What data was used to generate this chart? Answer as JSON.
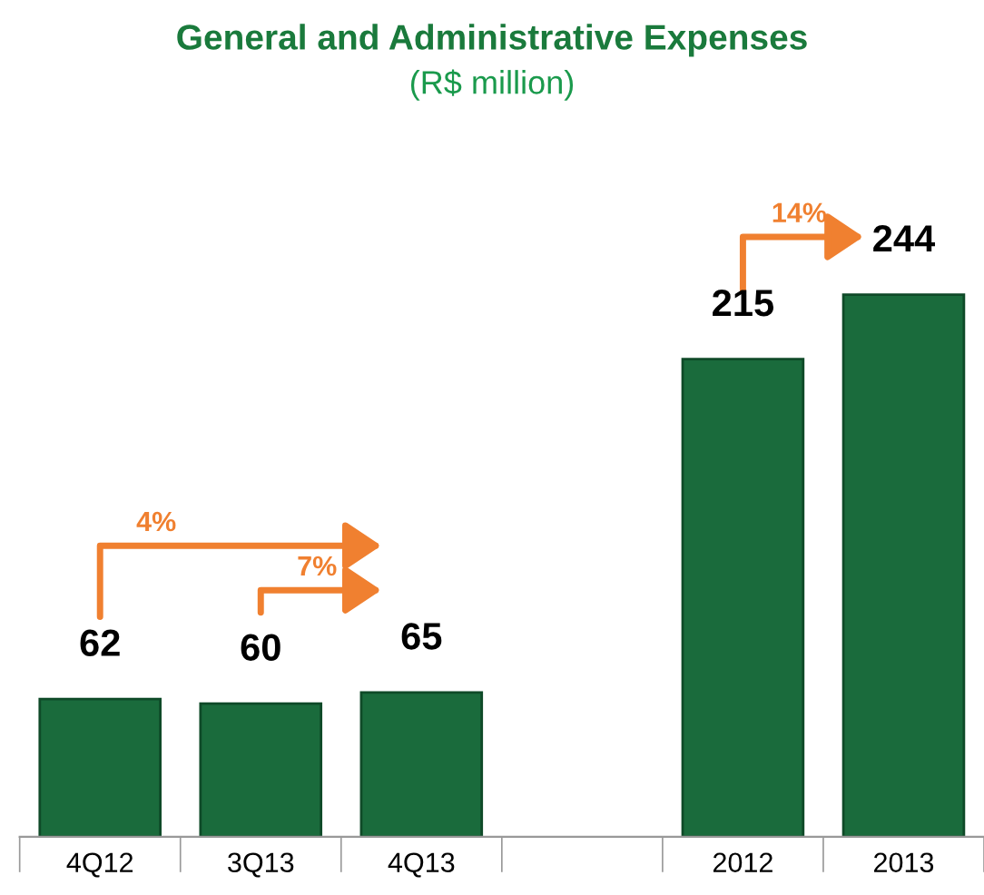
{
  "chart_data": {
    "type": "bar",
    "title": "General and Administrative Expenses",
    "subtitle": "(R$ million)",
    "categories": [
      "4Q12",
      "3Q13",
      "4Q13",
      null,
      "2012",
      "2013"
    ],
    "values": [
      62,
      60,
      65,
      null,
      215,
      244
    ],
    "color": "#1a6b3c",
    "data_labels": true,
    "grid": false,
    "legend": false,
    "annotations": [
      "4%",
      "7%",
      "14%"
    ]
  }
}
